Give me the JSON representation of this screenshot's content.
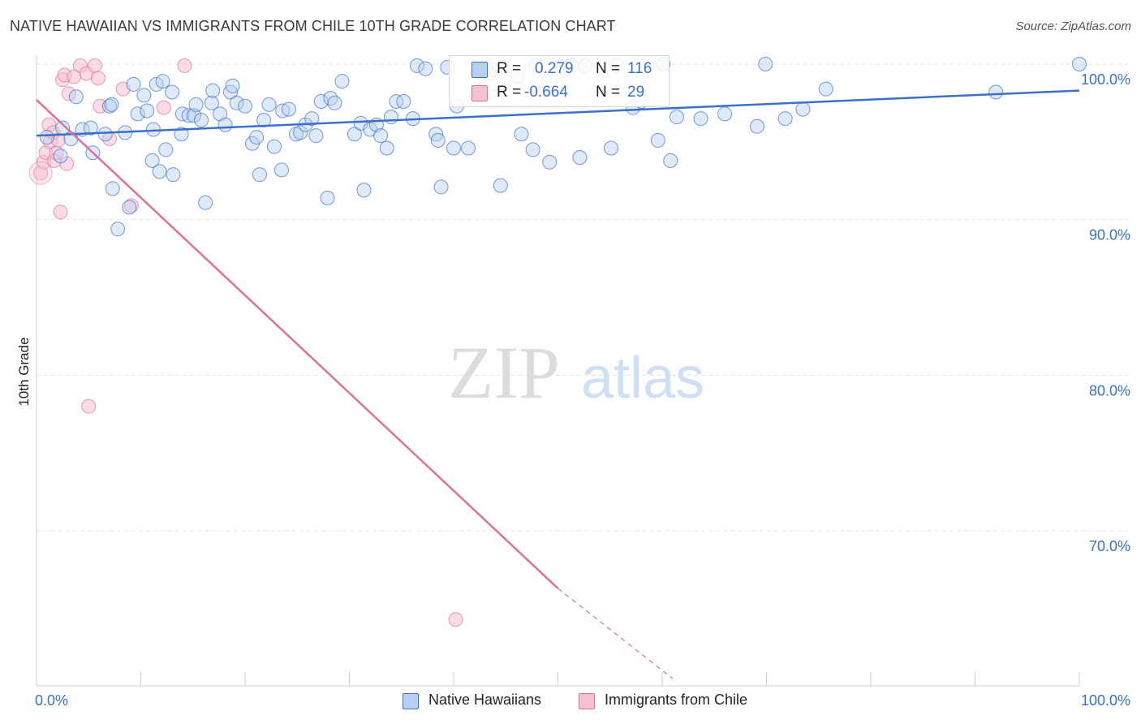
{
  "title": "NATIVE HAWAIIAN VS IMMIGRANTS FROM CHILE 10TH GRADE CORRELATION CHART",
  "source": "Source: ZipAtlas.com",
  "watermark": {
    "zip": "ZIP",
    "atlas": "atlas"
  },
  "colors": {
    "blue": "#3a70c9",
    "blue_fill": "#b8d0f0",
    "pink": "#e0709a",
    "pink_fill": "#f5c0d2",
    "grid": "#e4e4e4",
    "tick_label": "#3a70c9"
  },
  "legend": {
    "rows": [
      {
        "r_label": "R =",
        "r_value": "0.279",
        "n_label": "N =",
        "n_value": "116"
      },
      {
        "r_label": "R =",
        "r_value": "-0.664",
        "n_label": "N =",
        "n_value": "29"
      }
    ]
  },
  "bottom_legend": [
    "Native Hawaiians",
    "Immigrants from Chile"
  ],
  "chart_data": {
    "type": "scatter",
    "title": "NATIVE HAWAIIAN VS IMMIGRANTS FROM CHILE 10TH GRADE CORRELATION CHART",
    "xlabel": "",
    "ylabel": "10th Grade",
    "xlim": [
      0,
      100
    ],
    "ylim": [
      60.5,
      100.5
    ],
    "x_tick_labels": [
      "0.0%",
      "100.0%"
    ],
    "y_ticks": [
      70,
      80,
      90,
      100
    ],
    "y_tick_labels": [
      "70.0%",
      "80.0%",
      "90.0%",
      "100.0%"
    ],
    "grid": true,
    "series": [
      {
        "name": "Native Hawaiians",
        "r": 0.279,
        "n": 116,
        "trend": {
          "x0": 0,
          "y0": 95.4,
          "x1": 100,
          "y1": 98.3
        },
        "points": [
          [
            1.0,
            95.3
          ],
          [
            2.3,
            94.1
          ],
          [
            2.5,
            95.9
          ],
          [
            3.3,
            95.2
          ],
          [
            3.8,
            97.9
          ],
          [
            4.4,
            95.8
          ],
          [
            5.2,
            95.9
          ],
          [
            5.4,
            94.3
          ],
          [
            6.6,
            95.5
          ],
          [
            7.0,
            97.3
          ],
          [
            7.2,
            97.4
          ],
          [
            7.3,
            92.0
          ],
          [
            7.8,
            89.4
          ],
          [
            8.5,
            95.6
          ],
          [
            8.9,
            90.8
          ],
          [
            9.3,
            98.7
          ],
          [
            9.7,
            96.8
          ],
          [
            10.3,
            98.0
          ],
          [
            10.6,
            97.0
          ],
          [
            11.1,
            93.8
          ],
          [
            11.2,
            95.8
          ],
          [
            11.5,
            98.7
          ],
          [
            11.8,
            93.1
          ],
          [
            12.1,
            98.9
          ],
          [
            12.4,
            94.5
          ],
          [
            13.0,
            98.2
          ],
          [
            13.1,
            92.9
          ],
          [
            13.9,
            95.5
          ],
          [
            14.0,
            96.8
          ],
          [
            14.6,
            96.7
          ],
          [
            15.1,
            96.7
          ],
          [
            15.3,
            97.4
          ],
          [
            15.8,
            96.4
          ],
          [
            16.2,
            91.1
          ],
          [
            16.8,
            97.5
          ],
          [
            16.9,
            98.3
          ],
          [
            17.6,
            96.8
          ],
          [
            18.1,
            96.1
          ],
          [
            18.6,
            98.2
          ],
          [
            18.8,
            98.6
          ],
          [
            19.2,
            97.5
          ],
          [
            20.0,
            97.3
          ],
          [
            20.7,
            94.9
          ],
          [
            21.1,
            95.3
          ],
          [
            21.4,
            92.9
          ],
          [
            21.8,
            96.4
          ],
          [
            22.3,
            97.4
          ],
          [
            22.8,
            94.7
          ],
          [
            23.5,
            93.2
          ],
          [
            23.6,
            97.0
          ],
          [
            24.2,
            97.1
          ],
          [
            24.9,
            95.5
          ],
          [
            25.3,
            95.6
          ],
          [
            25.8,
            96.1
          ],
          [
            26.4,
            96.5
          ],
          [
            26.8,
            95.4
          ],
          [
            27.3,
            97.6
          ],
          [
            27.9,
            91.4
          ],
          [
            28.2,
            97.8
          ],
          [
            28.6,
            97.5
          ],
          [
            29.3,
            98.9
          ],
          [
            30.5,
            95.5
          ],
          [
            31.1,
            96.2
          ],
          [
            31.4,
            91.9
          ],
          [
            32.0,
            95.8
          ],
          [
            32.6,
            96.1
          ],
          [
            33.0,
            95.4
          ],
          [
            33.6,
            94.6
          ],
          [
            34.0,
            96.6
          ],
          [
            34.5,
            97.6
          ],
          [
            35.2,
            97.6
          ],
          [
            36.1,
            96.5
          ],
          [
            36.5,
            99.9
          ],
          [
            37.3,
            99.7
          ],
          [
            38.3,
            95.5
          ],
          [
            38.5,
            95.1
          ],
          [
            38.8,
            92.1
          ],
          [
            39.4,
            99.8
          ],
          [
            40.0,
            94.6
          ],
          [
            40.3,
            97.3
          ],
          [
            41.4,
            94.6
          ],
          [
            42.5,
            99.6
          ],
          [
            43.4,
            99.4
          ],
          [
            44.5,
            92.2
          ],
          [
            46.1,
            99.2
          ],
          [
            46.5,
            95.5
          ],
          [
            47.6,
            94.5
          ],
          [
            47.9,
            99.9
          ],
          [
            49.2,
            93.7
          ],
          [
            50.4,
            99.8
          ],
          [
            51.3,
            99.9
          ],
          [
            52.1,
            94.0
          ],
          [
            52.6,
            99.9
          ],
          [
            55.1,
            94.6
          ],
          [
            55.7,
            99.9
          ],
          [
            57.2,
            97.2
          ],
          [
            58.0,
            97.6
          ],
          [
            59.6,
            95.1
          ],
          [
            60.1,
            100.0
          ],
          [
            60.8,
            93.8
          ],
          [
            61.4,
            96.6
          ],
          [
            63.7,
            96.5
          ],
          [
            66.0,
            96.8
          ],
          [
            69.1,
            96.0
          ],
          [
            69.9,
            100.0
          ],
          [
            71.8,
            96.5
          ],
          [
            73.5,
            97.1
          ],
          [
            75.7,
            98.4
          ],
          [
            92.0,
            98.2
          ],
          [
            100.0,
            100.0
          ]
        ]
      },
      {
        "name": "Immigrants from Chile",
        "r": -0.664,
        "n": 29,
        "trend": {
          "x0": 0,
          "y0": 97.7,
          "x1": 50,
          "y1": 66.3,
          "dash_to_x": 61,
          "dash_to_y": 60.5
        },
        "points": [
          [
            0.4,
            93.0
          ],
          [
            0.7,
            93.7
          ],
          [
            0.9,
            94.3
          ],
          [
            1.2,
            96.1
          ],
          [
            1.3,
            95.0
          ],
          [
            1.6,
            95.6
          ],
          [
            1.7,
            93.8
          ],
          [
            1.9,
            94.3
          ],
          [
            2.1,
            95.1
          ],
          [
            2.3,
            90.5
          ],
          [
            2.5,
            99.0
          ],
          [
            2.7,
            99.3
          ],
          [
            2.9,
            93.6
          ],
          [
            3.1,
            98.1
          ],
          [
            3.6,
            99.2
          ],
          [
            4.2,
            99.9
          ],
          [
            4.8,
            99.4
          ],
          [
            5.0,
            78.0
          ],
          [
            5.6,
            99.9
          ],
          [
            5.9,
            99.1
          ],
          [
            6.1,
            97.3
          ],
          [
            7.0,
            95.2
          ],
          [
            8.3,
            98.4
          ],
          [
            9.1,
            90.9
          ],
          [
            12.2,
            97.2
          ],
          [
            14.2,
            99.9
          ],
          [
            40.2,
            64.3
          ]
        ]
      }
    ]
  }
}
